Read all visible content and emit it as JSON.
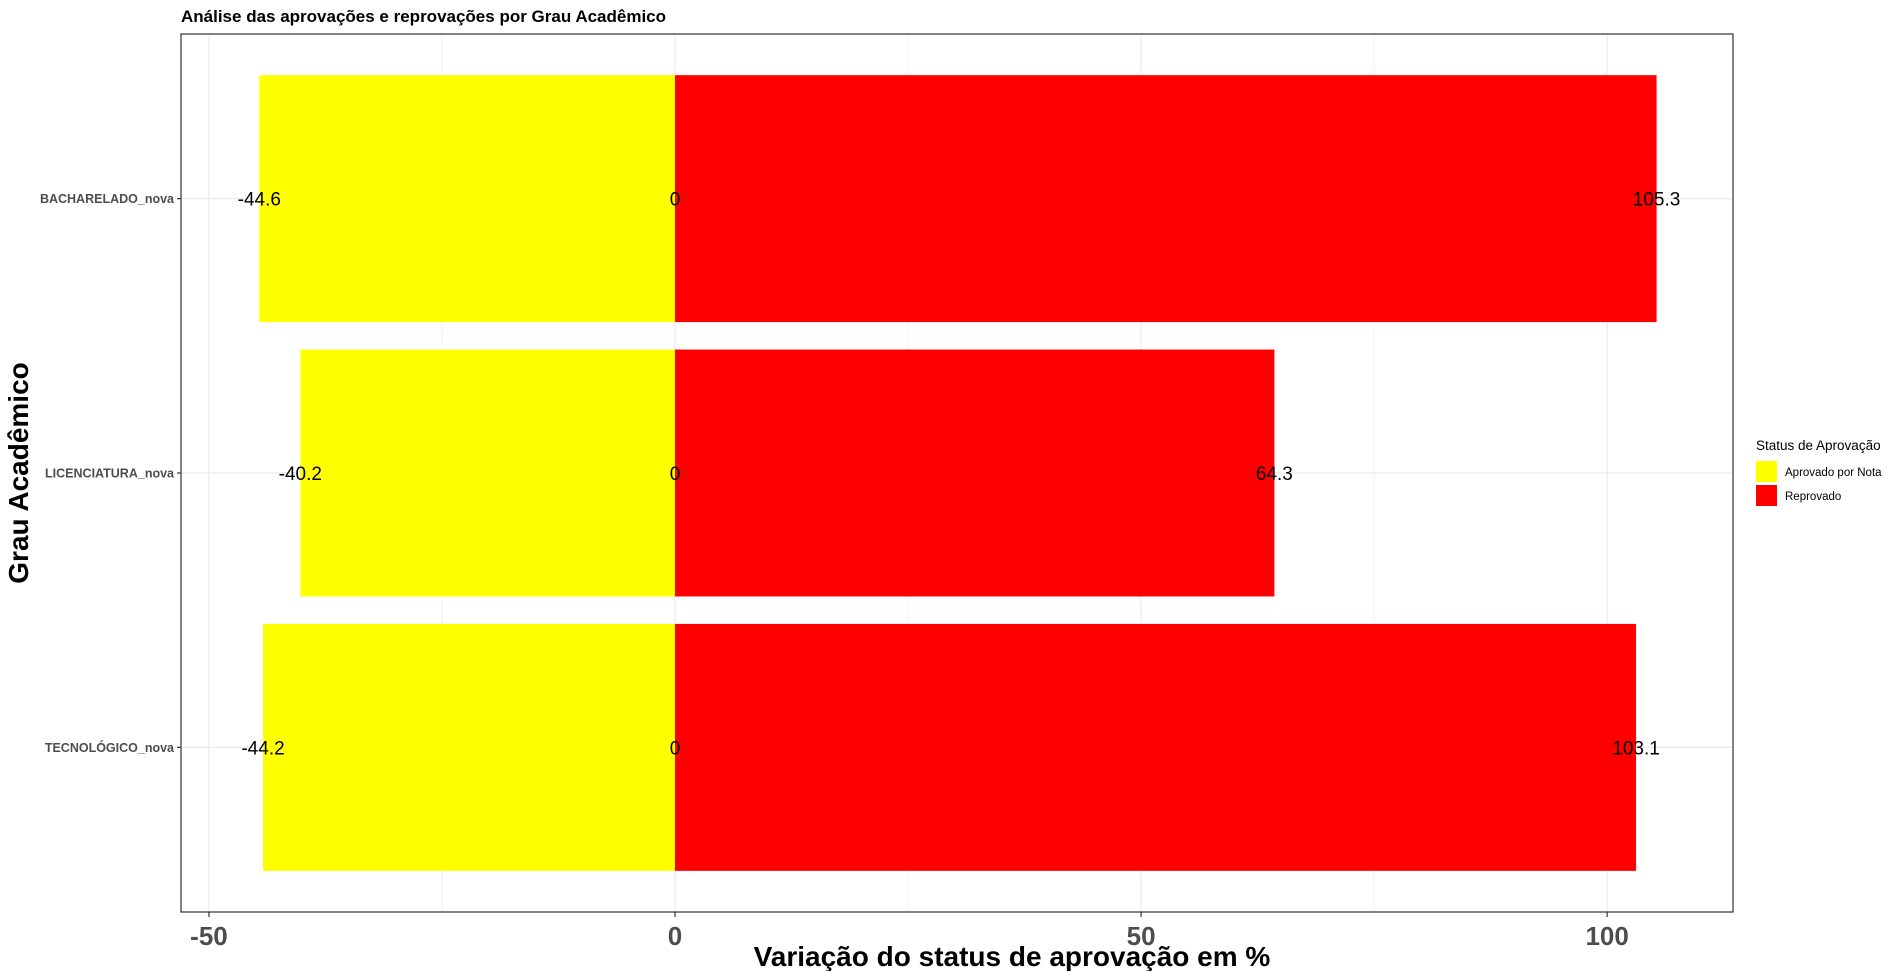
{
  "chart_data": {
    "type": "bar",
    "orientation": "horizontal",
    "stacked": true,
    "title": "Análise das aprovações e reprovações por Grau Acadêmico",
    "xlabel": "Variação do status de aprovação em %",
    "ylabel": "Grau Acadêmico",
    "xlim": [
      -53,
      113.5
    ],
    "xticks": [
      -50,
      0,
      50,
      100
    ],
    "xtick_labels": [
      "-50",
      "0",
      "50",
      "100"
    ],
    "grid": true,
    "legend": {
      "title": "Status de Aprovação",
      "position": "right"
    },
    "categories": [
      "BACHARELADO_nova",
      "LICENCIATURA_nova",
      "TECNOLÓGICO_nova"
    ],
    "series": [
      {
        "name": "Aprovado por Nota",
        "color": "#ffff00",
        "values": [
          -44.6,
          -40.2,
          -44.2
        ],
        "labels": [
          "-44.6",
          "-40.2",
          "-44.2"
        ]
      },
      {
        "name": "Reprovado",
        "color": "#ff0000",
        "values": [
          105.3,
          64.3,
          103.1
        ],
        "labels": [
          "105.3",
          "64.3",
          "103.1"
        ]
      }
    ],
    "zero_labels": [
      "0",
      "0",
      "0"
    ]
  }
}
